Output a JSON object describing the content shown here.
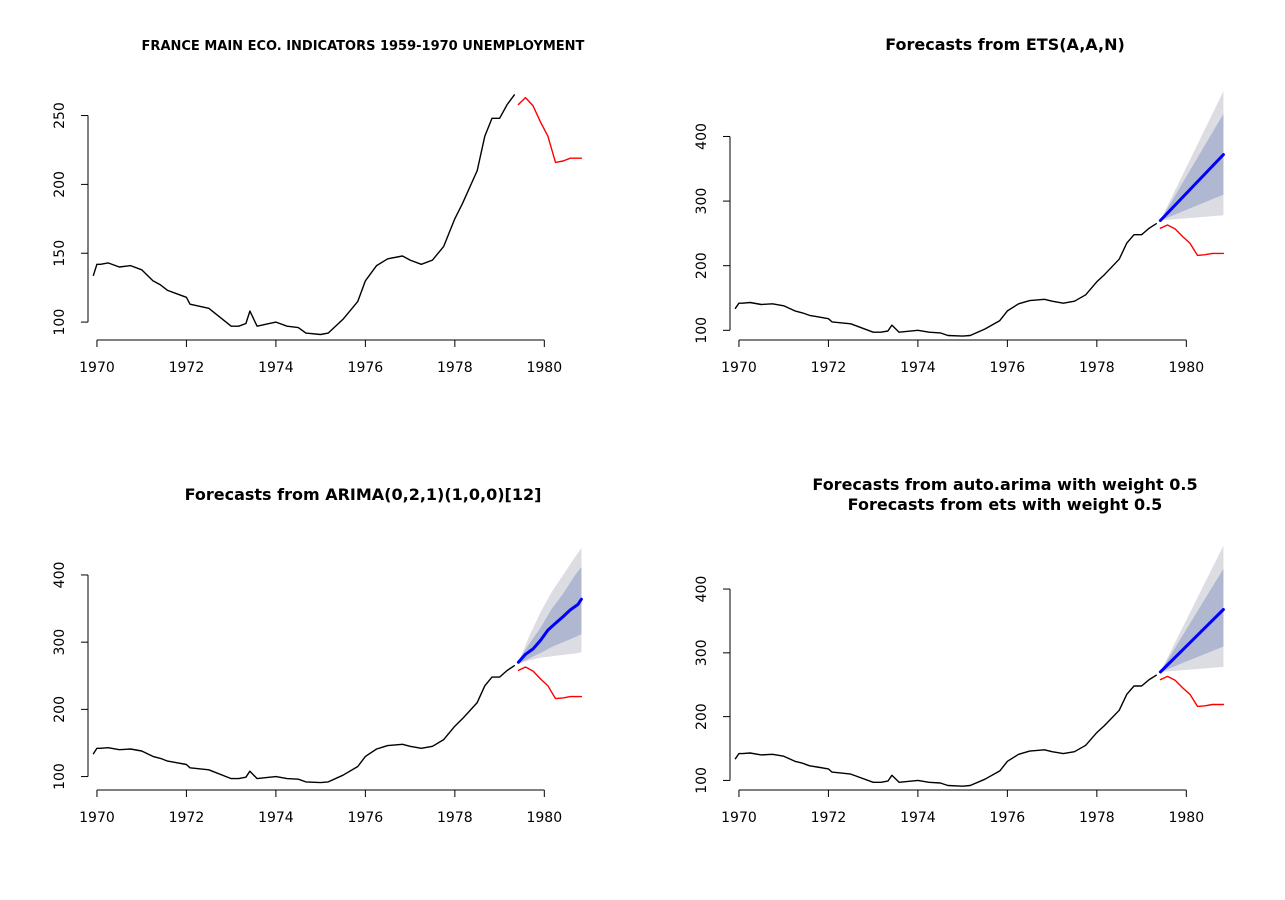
{
  "chart_data": [
    {
      "type": "line",
      "title": "FRANCE MAIN ECO. INDICATORS 1959-1970 UNEMPLOYMENT",
      "subtitle": "",
      "xlabel": "",
      "ylabel": "",
      "xlim": [
        1969.8,
        1981.2
      ],
      "ylim": [
        87,
        270
      ],
      "xticks": [
        1970,
        1972,
        1974,
        1976,
        1978,
        1980
      ],
      "yticks": [
        100,
        150,
        200,
        250
      ],
      "series": [
        {
          "color": "#000000",
          "x": [
            1969.92,
            1970.0,
            1970.08,
            1970.25,
            1970.5,
            1970.75,
            1971.0,
            1971.25,
            1971.42,
            1971.58,
            1971.75,
            1972.0,
            1972.08,
            1972.5,
            1973.0,
            1973.17,
            1973.33,
            1973.42,
            1973.58,
            1974.0,
            1974.25,
            1974.5,
            1974.67,
            1975.0,
            1975.17,
            1975.5,
            1975.83,
            1976.0,
            1976.25,
            1976.5,
            1976.83,
            1977.0,
            1977.25,
            1977.5,
            1977.75,
            1978.0,
            1978.17,
            1978.5,
            1978.67,
            1978.83,
            1979.0,
            1979.17,
            1979.33
          ],
          "y": [
            134,
            142,
            142,
            143,
            140,
            141,
            138,
            130,
            127,
            123,
            121,
            118,
            113,
            110,
            97,
            97,
            99,
            108,
            97,
            100,
            97,
            96,
            92,
            91,
            92,
            102,
            115,
            130,
            141,
            146,
            148,
            145,
            142,
            145,
            155,
            175,
            186,
            210,
            235,
            248,
            248,
            258,
            265
          ]
        },
        {
          "color": "#ff0000",
          "x": [
            1979.42,
            1979.58,
            1979.75,
            1979.92,
            1980.08,
            1980.25,
            1980.42,
            1980.58,
            1980.75,
            1980.83
          ],
          "y": [
            258,
            263,
            257,
            245,
            235,
            216,
            217,
            219,
            219,
            219
          ]
        }
      ]
    },
    {
      "type": "line",
      "title": "Forecasts from ETS(A,A,N)",
      "subtitle": "",
      "xlabel": "",
      "ylabel": "",
      "xlim": [
        1969.8,
        1981.2
      ],
      "ylim": [
        85,
        475
      ],
      "xticks": [
        1970,
        1972,
        1974,
        1976,
        1978,
        1980
      ],
      "yticks": [
        100,
        200,
        300,
        400
      ],
      "bands": [
        {
          "color": "#dcdce3",
          "x": [
            1979.42,
            1980.83
          ],
          "lower": [
            270,
            278
          ],
          "upper": [
            270,
            470
          ]
        },
        {
          "color": "#b0b7d1",
          "x": [
            1979.42,
            1980.83
          ],
          "lower": [
            270,
            310
          ],
          "upper": [
            270,
            435
          ]
        }
      ],
      "series": [
        {
          "color": "#000000",
          "x": [
            1969.92,
            1970.0,
            1970.08,
            1970.25,
            1970.5,
            1970.75,
            1971.0,
            1971.25,
            1971.42,
            1971.58,
            1971.75,
            1972.0,
            1972.08,
            1972.5,
            1973.0,
            1973.17,
            1973.33,
            1973.42,
            1973.58,
            1974.0,
            1974.25,
            1974.5,
            1974.67,
            1975.0,
            1975.17,
            1975.5,
            1975.83,
            1976.0,
            1976.25,
            1976.5,
            1976.83,
            1977.0,
            1977.25,
            1977.5,
            1977.75,
            1978.0,
            1978.17,
            1978.5,
            1978.67,
            1978.83,
            1979.0,
            1979.17,
            1979.33
          ],
          "y": [
            134,
            142,
            142,
            143,
            140,
            141,
            138,
            130,
            127,
            123,
            121,
            118,
            113,
            110,
            97,
            97,
            99,
            108,
            97,
            100,
            97,
            96,
            92,
            91,
            92,
            102,
            115,
            130,
            141,
            146,
            148,
            145,
            142,
            145,
            155,
            175,
            186,
            210,
            235,
            248,
            248,
            258,
            265
          ]
        },
        {
          "color": "#ff0000",
          "x": [
            1979.42,
            1979.58,
            1979.75,
            1979.92,
            1980.08,
            1980.25,
            1980.42,
            1980.58,
            1980.75,
            1980.83
          ],
          "y": [
            258,
            263,
            257,
            245,
            235,
            216,
            217,
            219,
            219,
            219
          ]
        },
        {
          "color": "#0000ff",
          "width": 3,
          "x": [
            1979.42,
            1980.83
          ],
          "y": [
            270,
            372
          ]
        }
      ]
    },
    {
      "type": "line",
      "title": "Forecasts from ARIMA(0,2,1)(1,0,0)[12]",
      "subtitle": "",
      "xlabel": "",
      "ylabel": "",
      "xlim": [
        1969.8,
        1981.2
      ],
      "ylim": [
        80,
        455
      ],
      "xticks": [
        1970,
        1972,
        1974,
        1976,
        1978,
        1980
      ],
      "yticks": [
        100,
        200,
        300,
        400
      ],
      "bands": [
        {
          "color": "#dcdce3",
          "x": [
            1979.42,
            1979.67,
            1979.92,
            1980.17,
            1980.42,
            1980.67,
            1980.83
          ],
          "lower": [
            268,
            273,
            277,
            279,
            281,
            283,
            285
          ],
          "upper": [
            270,
            310,
            345,
            375,
            400,
            425,
            440
          ]
        },
        {
          "color": "#b0b7d1",
          "x": [
            1979.42,
            1979.67,
            1979.92,
            1980.17,
            1980.42,
            1980.67,
            1980.83
          ],
          "lower": [
            268,
            276,
            284,
            293,
            300,
            307,
            312
          ],
          "upper": [
            272,
            298,
            322,
            350,
            372,
            398,
            412
          ]
        }
      ],
      "series": [
        {
          "color": "#000000",
          "x": [
            1969.92,
            1970.0,
            1970.08,
            1970.25,
            1970.5,
            1970.75,
            1971.0,
            1971.25,
            1971.42,
            1971.58,
            1971.75,
            1972.0,
            1972.08,
            1972.5,
            1973.0,
            1973.17,
            1973.33,
            1973.42,
            1973.58,
            1974.0,
            1974.25,
            1974.5,
            1974.67,
            1975.0,
            1975.17,
            1975.5,
            1975.83,
            1976.0,
            1976.25,
            1976.5,
            1976.83,
            1977.0,
            1977.25,
            1977.5,
            1977.75,
            1978.0,
            1978.17,
            1978.5,
            1978.67,
            1978.83,
            1979.0,
            1979.17,
            1979.33
          ],
          "y": [
            134,
            142,
            142,
            143,
            140,
            141,
            138,
            130,
            127,
            123,
            121,
            118,
            113,
            110,
            97,
            97,
            99,
            108,
            97,
            100,
            97,
            96,
            92,
            91,
            92,
            102,
            115,
            130,
            141,
            146,
            148,
            145,
            142,
            145,
            155,
            175,
            186,
            210,
            235,
            248,
            248,
            258,
            265
          ]
        },
        {
          "color": "#ff0000",
          "x": [
            1979.42,
            1979.58,
            1979.75,
            1979.92,
            1980.08,
            1980.25,
            1980.42,
            1980.58,
            1980.75,
            1980.83
          ],
          "y": [
            258,
            263,
            257,
            245,
            235,
            216,
            217,
            219,
            219,
            219
          ]
        },
        {
          "color": "#0000ff",
          "width": 3,
          "x": [
            1979.42,
            1979.58,
            1979.75,
            1979.92,
            1980.08,
            1980.25,
            1980.42,
            1980.58,
            1980.75,
            1980.83
          ],
          "y": [
            270,
            282,
            290,
            303,
            318,
            328,
            338,
            348,
            356,
            364
          ]
        }
      ]
    },
    {
      "type": "line",
      "title": "Forecasts from auto.arima with weight 0.5",
      "subtitle": "Forecasts from ets with weight 0.5",
      "xlabel": "",
      "ylabel": "",
      "xlim": [
        1969.8,
        1981.2
      ],
      "ylim": [
        85,
        480
      ],
      "xticks": [
        1970,
        1972,
        1974,
        1976,
        1978,
        1980
      ],
      "yticks": [
        100,
        200,
        300,
        400
      ],
      "bands": [
        {
          "color": "#dcdce3",
          "x": [
            1979.42,
            1980.83
          ],
          "lower": [
            270,
            278
          ],
          "upper": [
            270,
            468
          ]
        },
        {
          "color": "#b0b7d1",
          "x": [
            1979.42,
            1980.83
          ],
          "lower": [
            270,
            310
          ],
          "upper": [
            270,
            432
          ]
        }
      ],
      "series": [
        {
          "color": "#000000",
          "x": [
            1969.92,
            1970.0,
            1970.08,
            1970.25,
            1970.5,
            1970.75,
            1971.0,
            1971.25,
            1971.42,
            1971.58,
            1971.75,
            1972.0,
            1972.08,
            1972.5,
            1973.0,
            1973.17,
            1973.33,
            1973.42,
            1973.58,
            1974.0,
            1974.25,
            1974.5,
            1974.67,
            1975.0,
            1975.17,
            1975.5,
            1975.83,
            1976.0,
            1976.25,
            1976.5,
            1976.83,
            1977.0,
            1977.25,
            1977.5,
            1977.75,
            1978.0,
            1978.17,
            1978.5,
            1978.67,
            1978.83,
            1979.0,
            1979.17,
            1979.33
          ],
          "y": [
            134,
            142,
            142,
            143,
            140,
            141,
            138,
            130,
            127,
            123,
            121,
            118,
            113,
            110,
            97,
            97,
            99,
            108,
            97,
            100,
            97,
            96,
            92,
            91,
            92,
            102,
            115,
            130,
            141,
            146,
            148,
            145,
            142,
            145,
            155,
            175,
            186,
            210,
            235,
            248,
            248,
            258,
            265
          ]
        },
        {
          "color": "#ff0000",
          "x": [
            1979.42,
            1979.58,
            1979.75,
            1979.92,
            1980.08,
            1980.25,
            1980.42,
            1980.58,
            1980.75,
            1980.83
          ],
          "y": [
            258,
            263,
            257,
            245,
            235,
            216,
            217,
            219,
            219,
            219
          ]
        },
        {
          "color": "#0000ff",
          "width": 3,
          "x": [
            1979.42,
            1980.83
          ],
          "y": [
            270,
            368
          ]
        }
      ]
    }
  ]
}
